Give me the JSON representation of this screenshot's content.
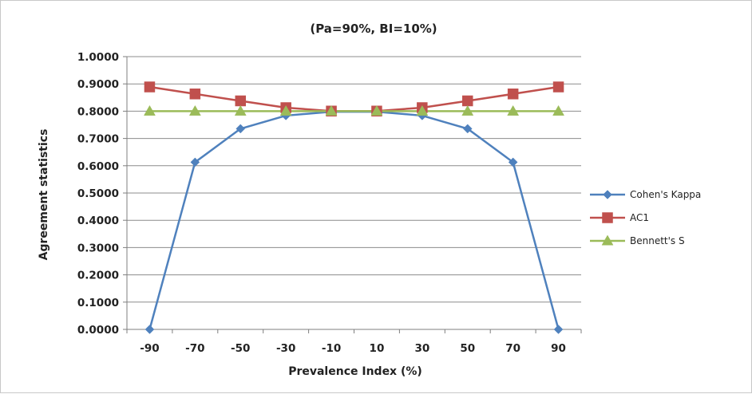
{
  "chart_data": {
    "type": "line",
    "title": "(Pa=90%, BI=10%)",
    "xlabel": "Prevalence Index (%)",
    "ylabel": "Agreement statistics",
    "categories": [
      "-90",
      "-70",
      "-50",
      "-30",
      "-10",
      "10",
      "30",
      "50",
      "70",
      "90"
    ],
    "ylim": [
      0,
      1
    ],
    "yticks": [
      "0.0000",
      "0.1000",
      "0.2000",
      "0.3000",
      "0.4000",
      "0.5000",
      "0.6000",
      "0.7000",
      "0.8000",
      "0.9000",
      "1.0000"
    ],
    "grid": "horizontal",
    "legend_position": "right",
    "series": [
      {
        "name": "Cohen's Kappa",
        "color": "#4f81bd",
        "marker": "diamond",
        "values": [
          0.0,
          0.6129,
          0.7356,
          0.7838,
          0.798,
          0.798,
          0.7838,
          0.7356,
          0.6129,
          0.0
        ]
      },
      {
        "name": "AC1",
        "color": "#c0504d",
        "marker": "square",
        "values": [
          0.8889,
          0.8632,
          0.8378,
          0.8129,
          0.8004,
          0.8004,
          0.8129,
          0.8378,
          0.8632,
          0.8889
        ]
      },
      {
        "name": "Bennett's S",
        "color": "#9bbb59",
        "marker": "triangle",
        "values": [
          0.8,
          0.8,
          0.8,
          0.8,
          0.8,
          0.8,
          0.8,
          0.8,
          0.8,
          0.8
        ]
      }
    ]
  }
}
